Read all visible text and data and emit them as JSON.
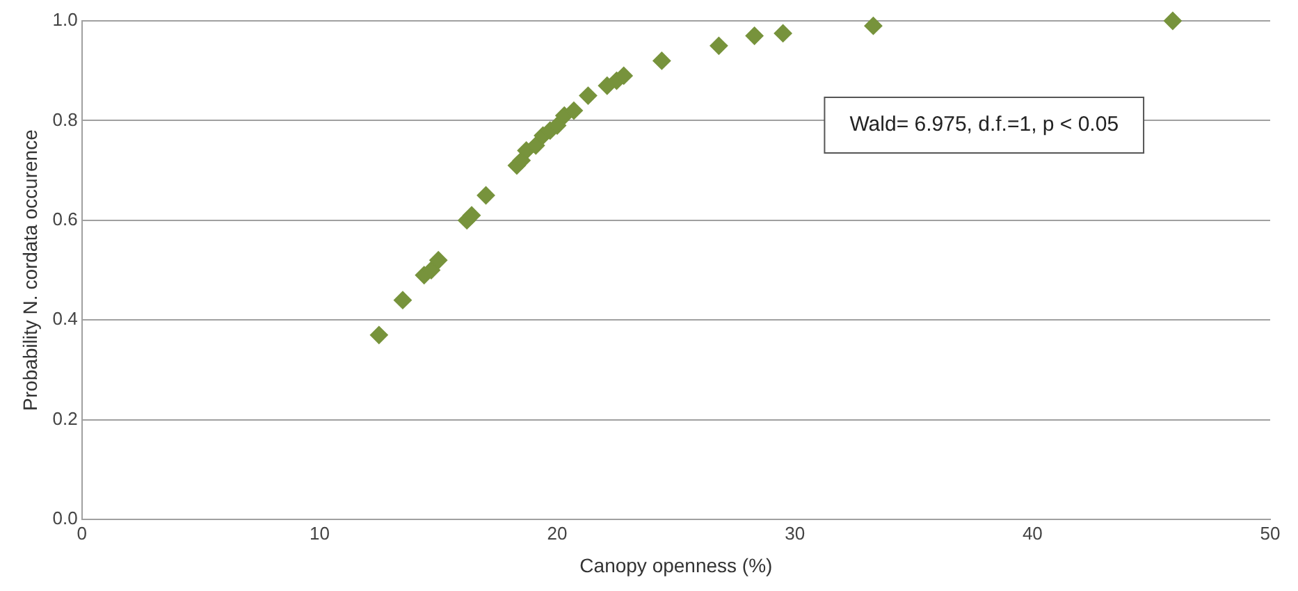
{
  "chart_data": {
    "type": "scatter",
    "xlabel": "Canopy openness (%)",
    "ylabel": "Probability N. cordata occurence",
    "x": [
      12.5,
      13.5,
      14.4,
      14.7,
      15.0,
      16.2,
      16.4,
      17.0,
      18.3,
      18.5,
      18.7,
      19.1,
      19.4,
      19.7,
      20.0,
      20.3,
      20.7,
      21.3,
      22.1,
      22.5,
      22.8,
      24.4,
      26.8,
      28.3,
      29.5,
      33.3,
      45.9
    ],
    "series": [
      {
        "color": "#77933c",
        "values": [
          0.37,
          0.44,
          0.49,
          0.5,
          0.52,
          0.6,
          0.61,
          0.65,
          0.71,
          0.72,
          0.74,
          0.75,
          0.77,
          0.78,
          0.79,
          0.81,
          0.82,
          0.85,
          0.87,
          0.88,
          0.89,
          0.92,
          0.95,
          0.97,
          0.975,
          0.99,
          1.0
        ]
      }
    ],
    "xlim": [
      0,
      50
    ],
    "xticks": [
      0,
      10,
      20,
      30,
      40,
      50
    ],
    "ylim": [
      0,
      1
    ],
    "yticks": [
      {
        "value": 0,
        "label": "0.0"
      },
      {
        "value": 0.2,
        "label": "0.2"
      },
      {
        "value": 0.4,
        "label": "0.4"
      },
      {
        "value": 0.6,
        "label": "0.6"
      },
      {
        "value": 0.8,
        "label": "0.8"
      },
      {
        "value": 1,
        "label": "1.0"
      }
    ],
    "grid": "y",
    "legend": false,
    "marker": "diamond",
    "annotations": [
      "Wald= 6.975, d.f.=1, p < 0.05"
    ]
  }
}
